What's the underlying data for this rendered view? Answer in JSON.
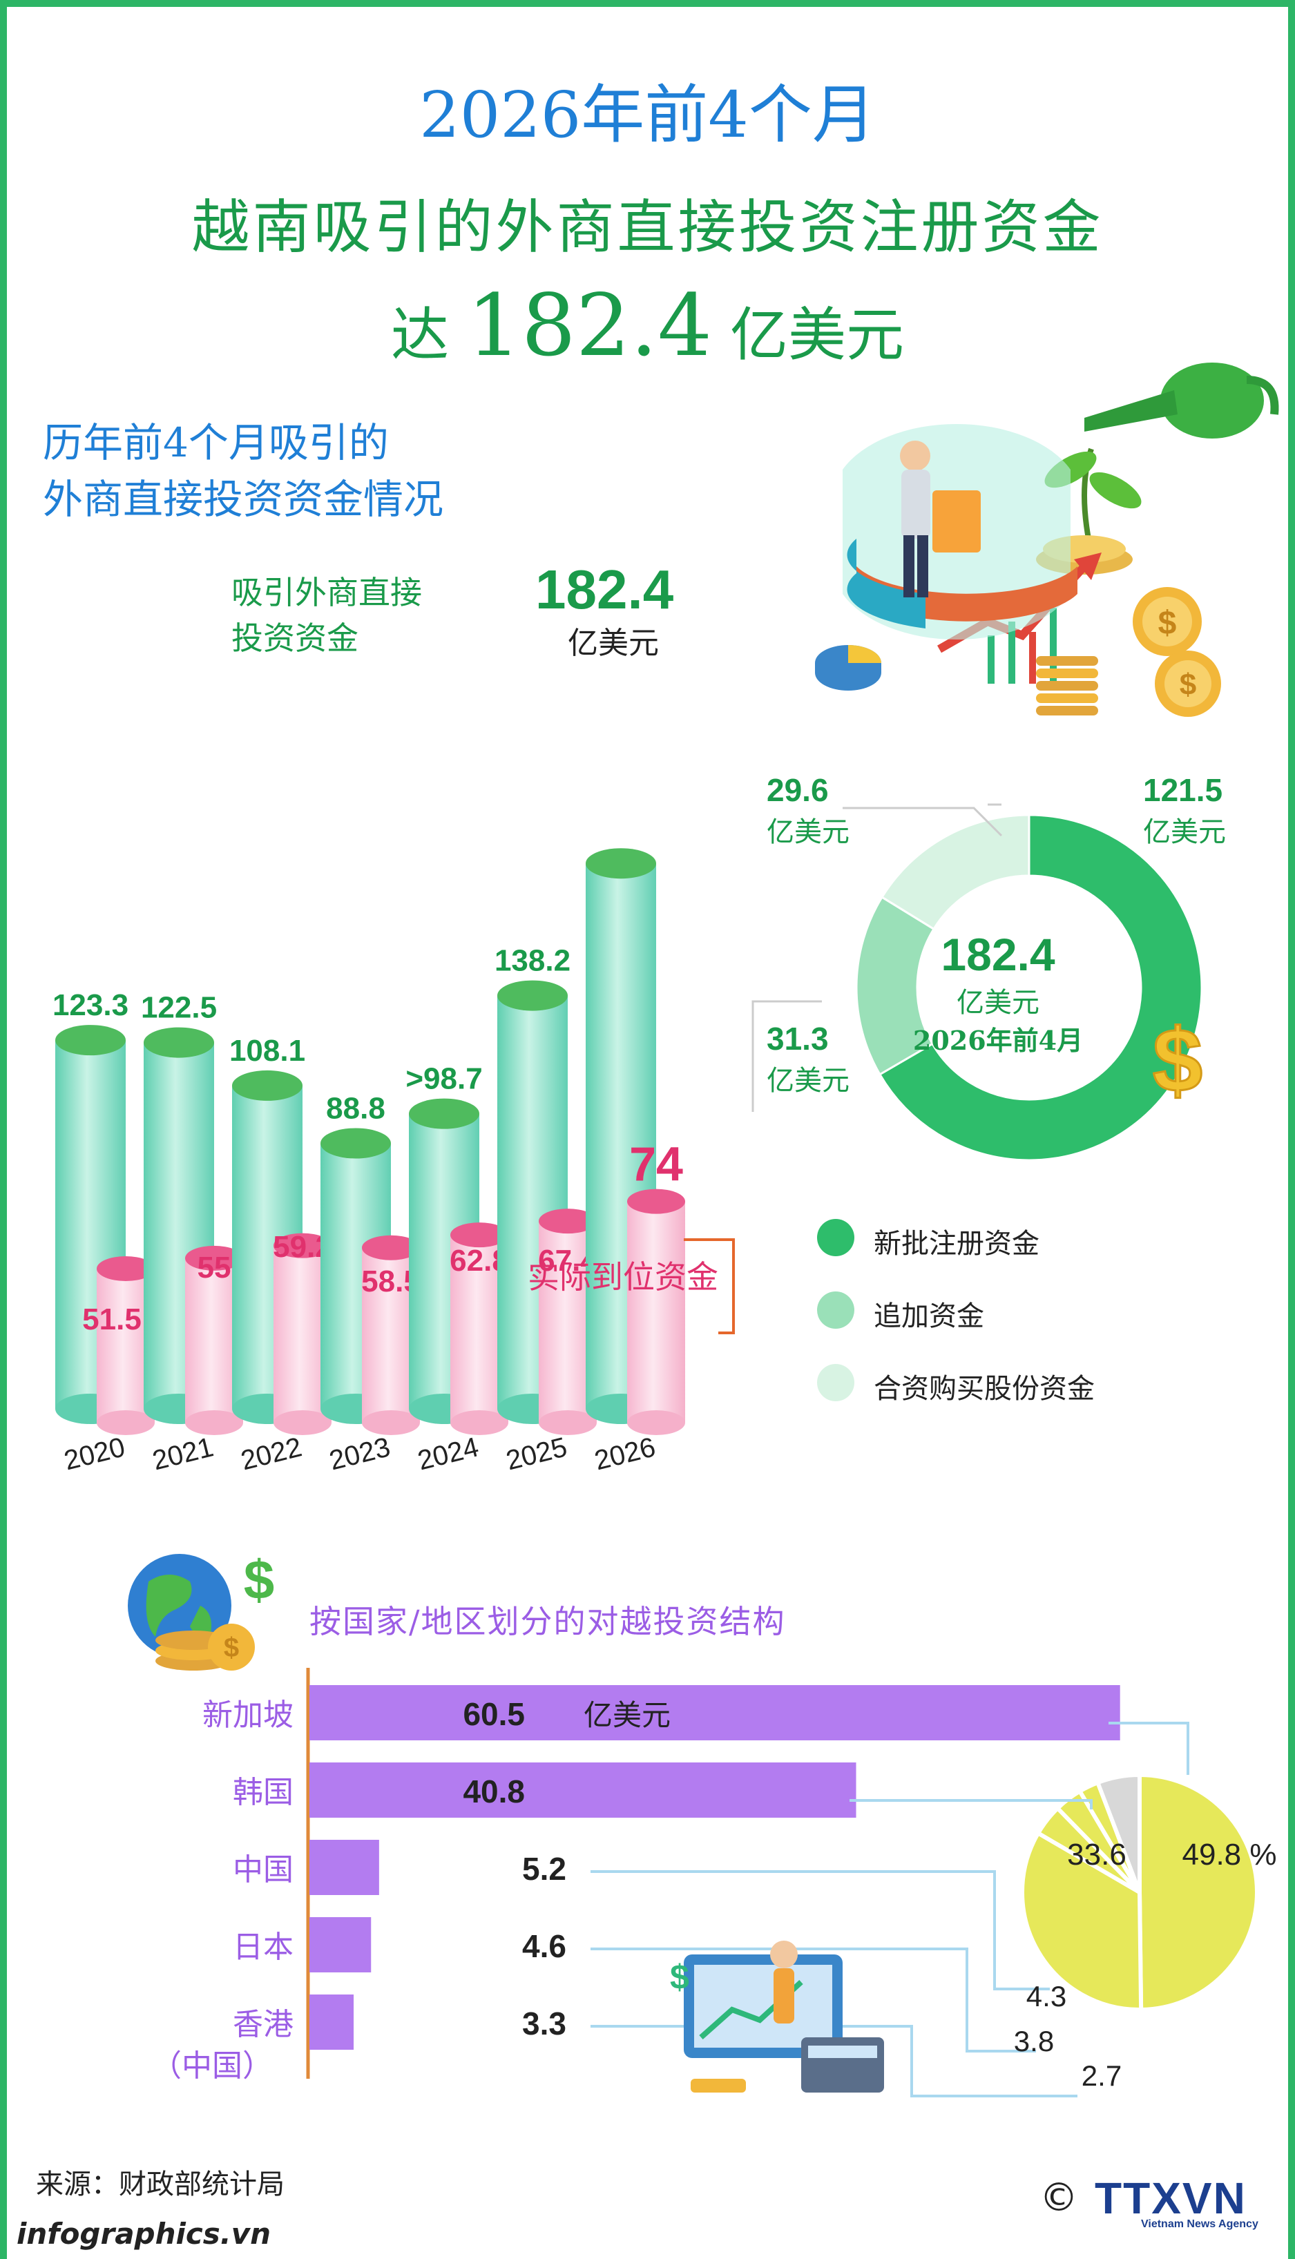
{
  "header": {
    "line1": "2026年前4个月",
    "line2": "越南吸引的外商直接投资注册资金",
    "line3_pre": "达",
    "line3_value": "182.4",
    "line3_post": "亿美元"
  },
  "section1": {
    "title_line1": "历年前4个月吸引的",
    "title_line2": "外商直接投资资金情况",
    "fdi_label_line1": "吸引外商直接",
    "fdi_label_line2": "投资资金",
    "top_value": "182.4",
    "top_unit": "亿美元",
    "disbursed_label": "实际到位资金",
    "top_disbursed": "74"
  },
  "donut": {
    "center_value": "182.4",
    "center_unit": "亿美元",
    "center_period": "2026年前4月",
    "labels": {
      "new_value": "121.5",
      "new_unit": "亿美元",
      "added_value": "31.3",
      "added_unit": "亿美元",
      "shares_value": "29.6",
      "shares_unit": "亿美元"
    },
    "legend": [
      "新批注册资金",
      "追加资金",
      "合资购买股份资金"
    ],
    "colors": [
      "#2ebd6b",
      "#9ae0b8",
      "#d8f3e3"
    ]
  },
  "section2": {
    "title": "按国家/地区划分的对越投资结构",
    "unit": "亿美元",
    "pie_labels": [
      "49.8 %",
      "33.6",
      "4.3",
      "3.8",
      "2.7"
    ]
  },
  "footer": {
    "source": "来源：财政部统计局",
    "site": "infographics.vn",
    "copyright": "©",
    "logo": "TTXVN",
    "logo_sub": "Vietnam News Agency"
  },
  "chart_data": [
    {
      "type": "bar",
      "categories": [
        "2020",
        "2021",
        "2022",
        "2023",
        "2024",
        "2025",
        "2026"
      ],
      "series": [
        {
          "name": "吸引外商直接投资资金",
          "values": [
            123.3,
            122.5,
            108.1,
            88.8,
            98.7,
            138.2,
            182.4
          ],
          "labels": [
            "123.3",
            "122.5",
            "108.1",
            "88.8",
            ">98.7",
            "138.2",
            "182.4"
          ]
        },
        {
          "name": "实际到位资金",
          "values": [
            51.5,
            55,
            59.2,
            58.5,
            62.8,
            67.4,
            74
          ],
          "labels": [
            "51.5",
            "55",
            "59.2",
            "58.5",
            "62.8",
            "67.4",
            "74"
          ]
        }
      ],
      "unit": "亿美元"
    },
    {
      "type": "pie",
      "title": "2026年前4月",
      "categories": [
        "新批注册资金",
        "追加资金",
        "合资购买股份资金"
      ],
      "values": [
        121.5,
        31.3,
        29.6
      ],
      "unit": "亿美元"
    },
    {
      "type": "bar",
      "title": "按国家/地区划分的对越投资结构",
      "categories": [
        "新加坡",
        "韩国",
        "中国",
        "日本",
        "香港（中国）"
      ],
      "values": [
        60.5,
        40.8,
        5.2,
        4.6,
        3.3
      ],
      "labels": [
        "60.5",
        "40.8",
        "5.2",
        "4.6",
        "3.3"
      ],
      "unit": "亿美元"
    },
    {
      "type": "pie",
      "categories": [
        "新加坡",
        "韩国",
        "中国",
        "日本",
        "香港（中国）"
      ],
      "values": [
        49.8,
        33.6,
        4.3,
        3.8,
        2.7
      ],
      "unit": "%"
    }
  ]
}
